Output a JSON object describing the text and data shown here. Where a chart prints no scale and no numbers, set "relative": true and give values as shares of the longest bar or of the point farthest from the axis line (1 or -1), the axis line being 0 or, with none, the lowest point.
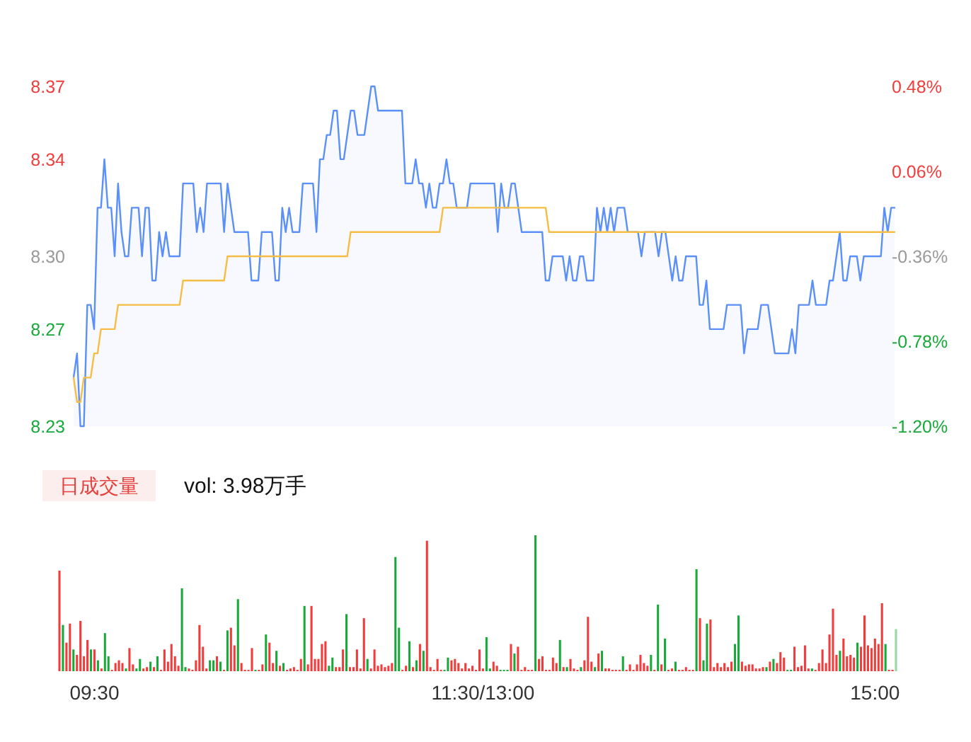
{
  "chart_data": [
    {
      "type": "area",
      "ylim": [
        8.23,
        8.37
      ],
      "tick_labels": "y",
      "yticks": [
        8.23,
        8.27,
        {
          "value": 8.3,
          "label": "8.30"
        },
        8.34,
        8.37
      ],
      "y2lim": [
        -1.2,
        0.48
      ],
      "y2ticks": [
        {
          "value": -1.2,
          "label": "-1.20%"
        },
        {
          "value": -0.78,
          "label": "-0.78%"
        },
        {
          "value": -0.36,
          "label": "-0.36%"
        },
        {
          "value": 0.06,
          "label": "0.06%"
        },
        {
          "value": 0.48,
          "label": "0.48%"
        }
      ],
      "categories": [
        null,
        null,
        null,
        null,
        null,
        null,
        null,
        null,
        null,
        null,
        null,
        null,
        null,
        null,
        null,
        null,
        null,
        null,
        null,
        null,
        null,
        null,
        null,
        null,
        null,
        null,
        null,
        null,
        null,
        null,
        null,
        null,
        null,
        null,
        null,
        null,
        null,
        null,
        null,
        null,
        null,
        null,
        null,
        null,
        null,
        null,
        null,
        null,
        null,
        null,
        null,
        null,
        null,
        null,
        null,
        null,
        null,
        null,
        null,
        null,
        null,
        null,
        null,
        null,
        null,
        null,
        null,
        null,
        null,
        null,
        null,
        null,
        null,
        null,
        null,
        null,
        null,
        null,
        null,
        null,
        null,
        null,
        null,
        null,
        null,
        null,
        null,
        null,
        null,
        null,
        null,
        null,
        null,
        null,
        null,
        null,
        null,
        null,
        null,
        null,
        null,
        null,
        null,
        null,
        null,
        null,
        null,
        null,
        null,
        null,
        null,
        null,
        null,
        null,
        null,
        null,
        null,
        null,
        null,
        null,
        null,
        null,
        null,
        null,
        null,
        null,
        null,
        null,
        null,
        null,
        null,
        null,
        null,
        null,
        null,
        null,
        null,
        null,
        null,
        null,
        null,
        null,
        null,
        null,
        null,
        null,
        null,
        null,
        null,
        null,
        null,
        null,
        null,
        null,
        null,
        null,
        null,
        null,
        null,
        null,
        null,
        null,
        null,
        null,
        null,
        null,
        null,
        null,
        null,
        null,
        null,
        null,
        null,
        null,
        null,
        null,
        null,
        null,
        null,
        null,
        null,
        null,
        null,
        null,
        null,
        null,
        null,
        null,
        null,
        null,
        null,
        null,
        null,
        null,
        null,
        null,
        null,
        null,
        null,
        null,
        null,
        null,
        null,
        null,
        null,
        null,
        null,
        null,
        null,
        null,
        null,
        null,
        null,
        null,
        null,
        null,
        null,
        null,
        null,
        null,
        null,
        null,
        null,
        null,
        null,
        null,
        null,
        null,
        null,
        null,
        null,
        null,
        null,
        null,
        null,
        null,
        null,
        null,
        null,
        null,
        null
      ],
      "series": [
        {
          "color": "#5b8ff9",
          "values": [
            8.25,
            8.26,
            8.23,
            8.23,
            8.28,
            8.28,
            8.27,
            8.32,
            8.32,
            8.34,
            8.32,
            8.32,
            8.3,
            8.33,
            8.31,
            8.3,
            8.3,
            8.32,
            8.32,
            8.32,
            8.3,
            8.32,
            8.32,
            8.29,
            8.29,
            8.31,
            8.3,
            8.31,
            8.3,
            8.3,
            8.3,
            8.3,
            8.33,
            8.33,
            8.33,
            8.33,
            8.31,
            8.32,
            8.31,
            8.33,
            8.33,
            8.33,
            8.33,
            8.33,
            8.31,
            8.33,
            8.32,
            8.31,
            8.31,
            8.31,
            8.31,
            8.31,
            8.29,
            8.29,
            8.29,
            8.31,
            8.31,
            8.31,
            8.31,
            8.29,
            8.29,
            8.32,
            8.31,
            8.32,
            8.31,
            8.31,
            8.31,
            8.33,
            8.33,
            8.33,
            8.33,
            8.31,
            8.34,
            8.34,
            8.35,
            8.35,
            8.36,
            8.36,
            8.34,
            8.34,
            8.35,
            8.36,
            8.36,
            8.35,
            8.35,
            8.35,
            8.36,
            8.37,
            8.37,
            8.36,
            8.36,
            8.36,
            8.36,
            8.36,
            8.36,
            8.36,
            8.36,
            8.33,
            8.33,
            8.33,
            8.34,
            8.33,
            8.33,
            8.32,
            8.33,
            8.32,
            8.32,
            8.33,
            8.33,
            8.34,
            8.33,
            8.33,
            8.32,
            8.32,
            8.32,
            8.32,
            8.33,
            8.33,
            8.33,
            8.33,
            8.33,
            8.33,
            8.33,
            8.33,
            8.31,
            8.33,
            8.32,
            8.32,
            8.33,
            8.33,
            8.32,
            8.31,
            8.31,
            8.31,
            8.31,
            8.31,
            8.31,
            8.31,
            8.29,
            8.29,
            8.3,
            8.3,
            8.3,
            8.3,
            8.29,
            8.3,
            8.29,
            8.29,
            8.3,
            8.3,
            8.29,
            8.29,
            8.29,
            8.32,
            8.31,
            8.32,
            8.31,
            8.32,
            8.31,
            8.32,
            8.32,
            8.32,
            8.31,
            8.31,
            8.31,
            8.31,
            8.3,
            8.31,
            8.31,
            8.31,
            8.31,
            8.3,
            8.31,
            8.31,
            8.3,
            8.29,
            8.3,
            8.29,
            8.29,
            8.3,
            8.3,
            8.3,
            8.3,
            8.28,
            8.28,
            8.29,
            8.27,
            8.27,
            8.27,
            8.27,
            8.27,
            8.28,
            8.28,
            8.28,
            8.28,
            8.28,
            8.26,
            8.27,
            8.27,
            8.27,
            8.27,
            8.28,
            8.28,
            8.28,
            8.27,
            8.26,
            8.26,
            8.26,
            8.26,
            8.26,
            8.27,
            8.26,
            8.28,
            8.28,
            8.28,
            8.28,
            8.29,
            8.28,
            8.28,
            8.28,
            8.28,
            8.29,
            8.29,
            8.3,
            8.31,
            8.29,
            8.29,
            8.3,
            8.3,
            8.3,
            8.29,
            8.3,
            8.3,
            8.3,
            8.3,
            8.3,
            8.3,
            8.32,
            8.31,
            8.32,
            8.32
          ]
        },
        {
          "type": "line",
          "color": "#f6bd45",
          "values": [
            8.25,
            8.24,
            8.24,
            8.25,
            8.25,
            8.25,
            8.26,
            8.26,
            8.27,
            8.27,
            8.27,
            8.27,
            8.27,
            8.28,
            8.28,
            8.28,
            8.28,
            8.28,
            8.28,
            8.28,
            8.28,
            8.28,
            8.28,
            8.28,
            8.28,
            8.28,
            8.28,
            8.28,
            8.28,
            8.28,
            8.28,
            8.28,
            8.29,
            8.29,
            8.29,
            8.29,
            8.29,
            8.29,
            8.29,
            8.29,
            8.29,
            8.29,
            8.29,
            8.29,
            8.29,
            8.3,
            8.3,
            8.3,
            8.3,
            8.3,
            8.3,
            8.3,
            8.3,
            8.3,
            8.3,
            8.3,
            8.3,
            8.3,
            8.3,
            8.3,
            8.3,
            8.3,
            8.3,
            8.3,
            8.3,
            8.3,
            8.3,
            8.3,
            8.3,
            8.3,
            8.3,
            8.3,
            8.3,
            8.3,
            8.3,
            8.3,
            8.3,
            8.3,
            8.3,
            8.3,
            8.3,
            8.31,
            8.31,
            8.31,
            8.31,
            8.31,
            8.31,
            8.31,
            8.31,
            8.31,
            8.31,
            8.31,
            8.31,
            8.31,
            8.31,
            8.31,
            8.31,
            8.31,
            8.31,
            8.31,
            8.31,
            8.31,
            8.31,
            8.31,
            8.31,
            8.31,
            8.31,
            8.31,
            8.32,
            8.32,
            8.32,
            8.32,
            8.32,
            8.32,
            8.32,
            8.32,
            8.32,
            8.32,
            8.32,
            8.32,
            8.32,
            8.32,
            8.32,
            8.32,
            8.32,
            8.32,
            8.32,
            8.32,
            8.32,
            8.32,
            8.32,
            8.32,
            8.32,
            8.32,
            8.32,
            8.32,
            8.32,
            8.32,
            8.32,
            8.31,
            8.31,
            8.31,
            8.31,
            8.31,
            8.31,
            8.31,
            8.31,
            8.31,
            8.31,
            8.31,
            8.31,
            8.31,
            8.31,
            8.31,
            8.31,
            8.31,
            8.31,
            8.31,
            8.31,
            8.31,
            8.31,
            8.31,
            8.31,
            8.31,
            8.31,
            8.31,
            8.31,
            8.31,
            8.31,
            8.31,
            8.31,
            8.31,
            8.31,
            8.31,
            8.31,
            8.31,
            8.31,
            8.31,
            8.31,
            8.31,
            8.31,
            8.31,
            8.31,
            8.31,
            8.31,
            8.31,
            8.31,
            8.31,
            8.31,
            8.31,
            8.31,
            8.31,
            8.31,
            8.31,
            8.31,
            8.31,
            8.31,
            8.31,
            8.31,
            8.31,
            8.31,
            8.31,
            8.31,
            8.31,
            8.31,
            8.31,
            8.31,
            8.31,
            8.31,
            8.31,
            8.31,
            8.31,
            8.31,
            8.31,
            8.31,
            8.31,
            8.31,
            8.31,
            8.31,
            8.31,
            8.31,
            8.31,
            8.31,
            8.31,
            8.31,
            8.31,
            8.31,
            8.31,
            8.31,
            8.31,
            8.31,
            8.31,
            8.31,
            8.31,
            8.31,
            8.31,
            8.31,
            8.31,
            8.31,
            8.31,
            8.31
          ]
        }
      ]
    },
    {
      "type": "bar",
      "relative": true,
      "tick_labels": "x",
      "annotations": [
        "日成交量",
        "vol: 3.98万手"
      ],
      "categories": [
        null,
        null,
        null,
        null,
        null,
        null,
        null,
        null,
        null,
        null,
        "09:30",
        null,
        null,
        null,
        null,
        null,
        null,
        null,
        null,
        null,
        null,
        null,
        null,
        null,
        null,
        null,
        null,
        null,
        null,
        null,
        null,
        null,
        null,
        null,
        null,
        null,
        null,
        null,
        null,
        null,
        null,
        null,
        null,
        null,
        null,
        null,
        null,
        null,
        null,
        null,
        null,
        null,
        null,
        null,
        null,
        null,
        null,
        null,
        null,
        null,
        null,
        null,
        null,
        null,
        null,
        null,
        null,
        null,
        null,
        null,
        null,
        null,
        null,
        null,
        null,
        null,
        null,
        null,
        null,
        null,
        null,
        null,
        null,
        null,
        null,
        null,
        null,
        null,
        null,
        null,
        null,
        null,
        null,
        null,
        null,
        null,
        null,
        null,
        null,
        null,
        null,
        null,
        null,
        null,
        null,
        null,
        null,
        null,
        null,
        null,
        null,
        null,
        null,
        null,
        null,
        null,
        null,
        null,
        null,
        null,
        null,
        "11:30/13:00",
        null,
        null,
        null,
        null,
        null,
        null,
        null,
        null,
        null,
        null,
        null,
        null,
        null,
        null,
        null,
        null,
        null,
        null,
        null,
        null,
        null,
        null,
        null,
        null,
        null,
        null,
        null,
        null,
        null,
        null,
        null,
        null,
        null,
        null,
        null,
        null,
        null,
        null,
        null,
        null,
        null,
        null,
        null,
        null,
        null,
        null,
        null,
        null,
        null,
        null,
        null,
        null,
        null,
        null,
        null,
        null,
        null,
        null,
        null,
        null,
        null,
        null,
        null,
        null,
        null,
        null,
        null,
        null,
        null,
        null,
        null,
        null,
        null,
        null,
        null,
        null,
        null,
        null,
        null,
        null,
        null,
        null,
        null,
        null,
        null,
        null,
        null,
        null,
        null,
        null,
        null,
        null,
        null,
        null,
        null,
        null,
        null,
        null,
        null,
        null,
        null,
        null,
        null,
        null,
        null,
        null,
        null,
        null,
        null,
        null,
        null,
        "15:00",
        null,
        null,
        null,
        null,
        null,
        null
      ],
      "values": [
        0.74,
        0.34,
        0.21,
        0.35,
        0.16,
        0.12,
        0.37,
        0.11,
        0.23,
        0.16,
        0.16,
        0.08,
        0.02,
        0.28,
        0.11,
        0.01,
        0.06,
        0.08,
        0.06,
        0.02,
        0.17,
        0.05,
        0.02,
        0.09,
        0.02,
        0.03,
        0.07,
        0.03,
        0.11,
        0.01,
        0.16,
        0.07,
        0.2,
        0.11,
        0.04,
        0.61,
        0.03,
        0.02,
        0.01,
        0.08,
        0.34,
        0.18,
        0.02,
        0.08,
        0.08,
        0.11,
        0.07,
        0.01,
        0.3,
        0.32,
        0.19,
        0.53,
        0.06,
        0.01,
        0.01,
        0.17,
        0.01,
        0.01,
        0.05,
        0.27,
        0.21,
        0.06,
        0.15,
        0.04,
        0.06,
        0.01,
        0.02,
        0.03,
        0.01,
        0.09,
        0.48,
        0.05,
        0.48,
        0.09,
        0.09,
        0.2,
        0.22,
        0.04,
        0.1,
        0.03,
        0.03,
        0.16,
        0.42,
        0.03,
        0.03,
        0.16,
        0.02,
        0.39,
        0.09,
        0.02,
        0.16,
        0.04,
        0.05,
        0.03,
        0.04,
        0.06,
        0.84,
        0.32,
        0.01,
        0.04,
        0.22,
        0.03,
        0.08,
        0.2,
        0.15,
        0.96,
        0.03,
        0.01,
        0.09,
        0.01,
        0.01,
        0.1,
        0.08,
        0.09,
        0.06,
        0.02,
        0.06,
        0.02,
        0.04,
        0.01,
        0.16,
        0.02,
        0.25,
        0.02,
        0.07,
        0.04,
        0.01,
        0.01,
        0.01,
        0.2,
        0.13,
        0.18,
        0.01,
        0.03,
        0.01,
        0.01,
        1,
        0.09,
        0.11,
        0.01,
        0.01,
        0.1,
        0.06,
        0.23,
        0.03,
        0.03,
        0.09,
        0.02,
        0.01,
        0.03,
        0.08,
        0.4,
        0.07,
        0.03,
        0.13,
        0.15,
        0.02,
        0.02,
        0.01,
        0.01,
        0.01,
        0.11,
        0.01,
        0.05,
        0.01,
        0.05,
        0.12,
        0.06,
        0.04,
        0.12,
        0.01,
        0.49,
        0.05,
        0.24,
        0.01,
        0.02,
        0.07,
        0.01,
        0.01,
        0.03,
        0.01,
        0.01,
        0.75,
        0.39,
        0.08,
        0.35,
        0.38,
        0.03,
        0.06,
        0.03,
        0.06,
        0.03,
        0.07,
        0.2,
        0.41,
        0.07,
        0.04,
        0.05,
        0.05,
        0.02,
        0.02,
        0.03,
        0.03,
        0.07,
        0.09,
        0.06,
        0.14,
        0.1,
        0.01,
        0.01,
        0.18,
        0.03,
        0.04,
        0.19,
        0.02,
        0.02,
        0.01,
        0.06,
        0.16,
        0.06,
        0.27,
        0.46,
        0.12,
        0.15,
        0.24,
        0.11,
        0.12,
        0.1,
        0.21,
        0.18,
        0.41,
        0.19,
        0.17,
        0.24,
        0.2,
        0.5,
        0.2,
        0.01,
        0.01,
        0.31
      ],
      "colors": [
        "#f23c3c",
        "#19a83a",
        "#f23c3c",
        "#f23c3c",
        "#19a83a",
        "#f23c3c",
        "#f23c3c",
        "#f23c3c",
        "#f23c3c",
        "#19a83a",
        "#f23c3c",
        "#19a83a",
        "#f23c3c",
        "#19a83a",
        "#19a83a",
        "#f23c3c",
        "#f23c3c",
        "#f23c3c",
        "#f23c3c",
        "#19a83a",
        "#f23c3c",
        "#f23c3c",
        "#19a83a",
        "#19a83a",
        "#f23c3c",
        "#f23c3c",
        "#19a83a",
        "#f23c3c",
        "#19a83a",
        "#f23c3c",
        "#f23c3c",
        "#f23c3c",
        "#f23c3c",
        "#f23c3c",
        "#f23c3c",
        "#19a83a",
        "#19a83a",
        "#f23c3c",
        "#f23c3c",
        "#f23c3c",
        "#f23c3c",
        "#f23c3c",
        "#f23c3c",
        "#19a83a",
        "#19a83a",
        "#f23c3c",
        "#19a83a",
        "#f23c3c",
        "#19a83a",
        "#f23c3c",
        "#f23c3c",
        "#19a83a",
        "#f23c3c",
        "#f23c3c",
        "#f23c3c",
        "#f23c3c",
        "#19a83a",
        "#f23c3c",
        "#f23c3c",
        "#19a83a",
        "#f23c3c",
        "#f23c3c",
        "#19a83a",
        "#f23c3c",
        "#19a83a",
        "#f23c3c",
        "#f23c3c",
        "#f23c3c",
        "#f23c3c",
        "#f23c3c",
        "#19a83a",
        "#f23c3c",
        "#f23c3c",
        "#f23c3c",
        "#f23c3c",
        "#f23c3c",
        "#f23c3c",
        "#19a83a",
        "#19a83a",
        "#f23c3c",
        "#f23c3c",
        "#f23c3c",
        "#19a83a",
        "#f23c3c",
        "#f23c3c",
        "#f23c3c",
        "#f23c3c",
        "#f23c3c",
        "#19a83a",
        "#f23c3c",
        "#f23c3c",
        "#f23c3c",
        "#f23c3c",
        "#f23c3c",
        "#f23c3c",
        "#f23c3c",
        "#19a83a",
        "#19a83a",
        "#f23c3c",
        "#f23c3c",
        "#19a83a",
        "#f23c3c",
        "#19a83a",
        "#f23c3c",
        "#19a83a",
        "#f23c3c",
        "#f23c3c",
        "#f23c3c",
        "#f23c3c",
        "#f23c3c",
        "#19a83a",
        "#19a83a",
        "#f23c3c",
        "#f23c3c",
        "#f23c3c",
        "#f23c3c",
        "#f23c3c",
        "#f23c3c",
        "#f23c3c",
        "#f23c3c",
        "#f23c3c",
        "#f23c3c",
        "#19a83a",
        "#19a83a",
        "#f23c3c",
        "#f23c3c",
        "#19a83a",
        "#19a83a",
        "#19a83a",
        "#f23c3c",
        "#19a83a",
        "#f23c3c",
        "#f23c3c",
        "#f23c3c",
        "#f23c3c",
        "#f23c3c",
        "#19a83a",
        "#f23c3c",
        "#f23c3c",
        "#f23c3c",
        "#f23c3c",
        "#f23c3c",
        "#f23c3c",
        "#19a83a",
        "#f23c3c",
        "#19a83a",
        "#f23c3c",
        "#f23c3c",
        "#f23c3c",
        "#19a83a",
        "#f23c3c",
        "#f23c3c",
        "#f23c3c",
        "#19a83a",
        "#f23c3c",
        "#19a83a",
        "#f23c3c",
        "#f23c3c",
        "#f23c3c",
        "#f23c3c",
        "#f23c3c",
        "#19a83a",
        "#f23c3c",
        "#f23c3c",
        "#f23c3c",
        "#f23c3c",
        "#f23c3c",
        "#f23c3c",
        "#f23c3c",
        "#19a83a",
        "#f23c3c",
        "#19a83a",
        "#f23c3c",
        "#19a83a",
        "#f23c3c",
        "#f23c3c",
        "#19a83a",
        "#f23c3c",
        "#f23c3c",
        "#f23c3c",
        "#f23c3c",
        "#f23c3c",
        "#19a83a",
        "#f23c3c",
        "#19a83a",
        "#19a83a",
        "#f23c3c",
        "#f23c3c",
        "#f23c3c",
        "#f23c3c",
        "#f23c3c",
        "#f23c3c",
        "#f23c3c",
        "#19a83a",
        "#19a83a",
        "#f23c3c",
        "#f23c3c",
        "#f23c3c",
        "#f23c3c",
        "#f23c3c",
        "#f23c3c",
        "#f23c3c",
        "#19a83a",
        "#f23c3c",
        "#19a83a",
        "#f23c3c",
        "#f23c3c",
        "#f23c3c",
        "#19a83a",
        "#19a83a",
        "#f23c3c",
        "#f23c3c",
        "#f23c3c",
        "#f23c3c",
        "#f23c3c",
        "#19a83a",
        "#f23c3c",
        "#f23c3c",
        "#f23c3c",
        "#f23c3c",
        "#f23c3c",
        "#f23c3c",
        "#f23c3c",
        "#19a83a",
        "#f23c3c",
        "#f23c3c",
        "#f23c3c",
        "#f23c3c",
        "#19a83a",
        "#f23c3c",
        "#f23c3c",
        "#f23c3c",
        "#f23c3c",
        "#f23c3c",
        "#f23c3c",
        "#f23c3c",
        "#19a83a",
        "#f23c3c",
        "#f23c3c",
        "#93d9a0"
      ]
    }
  ]
}
